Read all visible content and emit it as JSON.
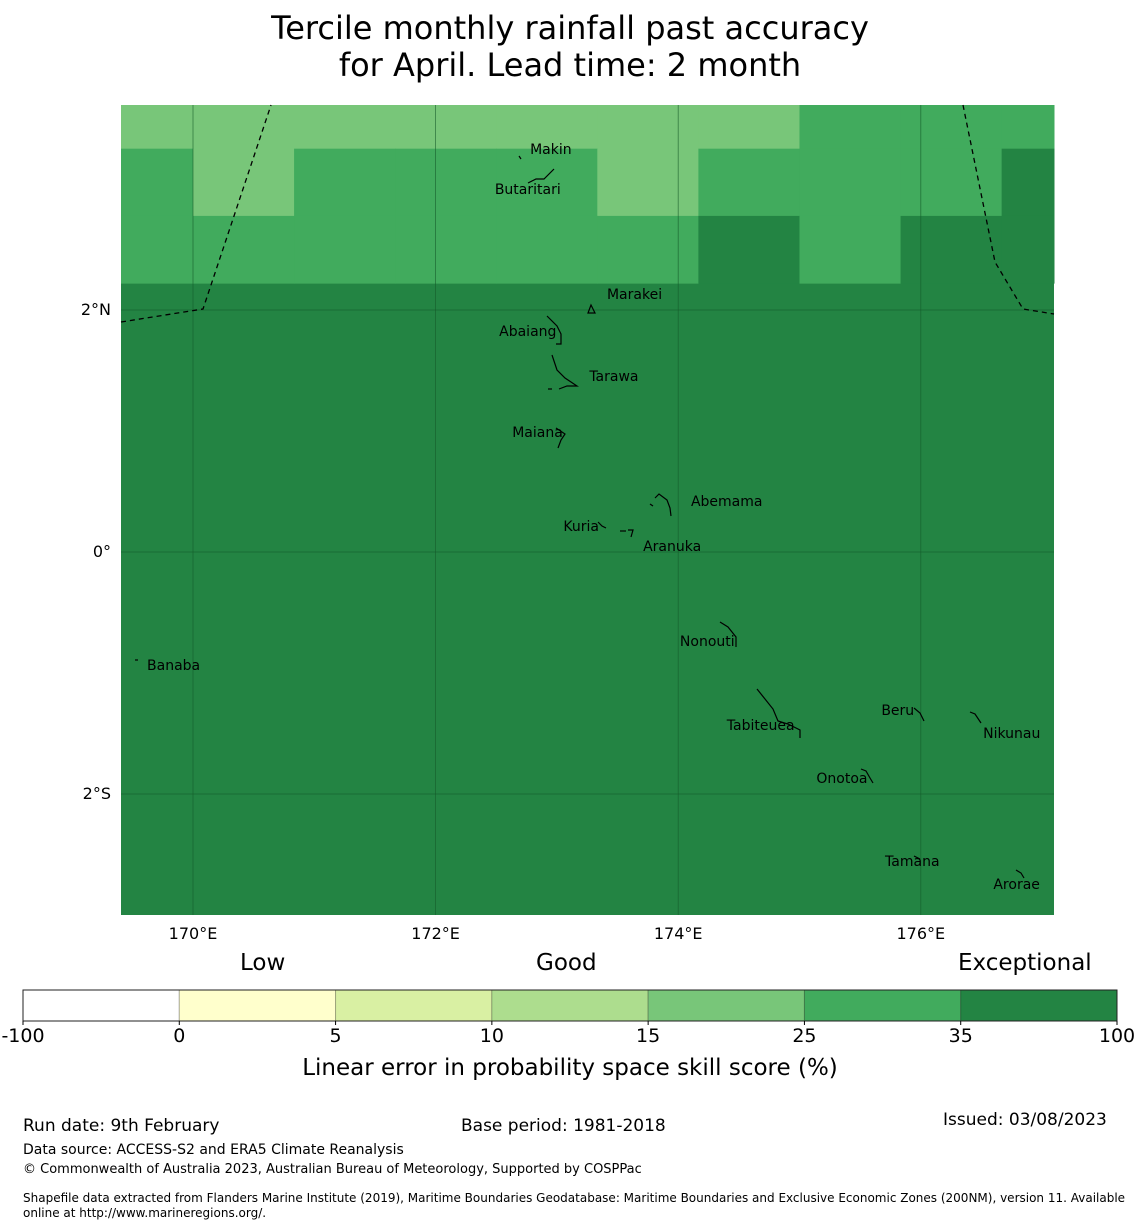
{
  "title_line1": "Tercile monthly rainfall past accuracy",
  "title_line2": "for April. Lead time: 2 month",
  "map": {
    "lon_range": [
      169.41,
      177.1
    ],
    "lat_range": [
      -3.0,
      3.69
    ],
    "grid": {
      "lon_start": 169.1667,
      "lat_start": 3.8889,
      "cell_lon": 0.8333,
      "cell_lat": 0.5556,
      "default_category": 6,
      "rows": [
        [
          4,
          4,
          4,
          4,
          4,
          4,
          4,
          5,
          5,
          5
        ],
        [
          5,
          4,
          5,
          5,
          5,
          4,
          5,
          5,
          5,
          6
        ],
        [
          5,
          5,
          5,
          5,
          5,
          5,
          6,
          5,
          6,
          6
        ]
      ]
    },
    "lon_ticks": [
      {
        "value": 170,
        "label": "170°E"
      },
      {
        "value": 172,
        "label": "172°E"
      },
      {
        "value": 174,
        "label": "174°E"
      },
      {
        "value": 176,
        "label": "176°E"
      }
    ],
    "lat_ticks": [
      {
        "value": 2,
        "label": "2°N"
      },
      {
        "value": 0,
        "label": "0°"
      },
      {
        "value": -2,
        "label": "2°S"
      }
    ],
    "islands": [
      {
        "name": "Makin",
        "lon": 172.95,
        "lat": 3.32
      },
      {
        "name": "Butaritari",
        "lon": 172.76,
        "lat": 2.99
      },
      {
        "name": "Marakei",
        "lon": 173.64,
        "lat": 2.12
      },
      {
        "name": "Abaiang",
        "lon": 172.76,
        "lat": 1.82
      },
      {
        "name": "Tarawa",
        "lon": 173.47,
        "lat": 1.45
      },
      {
        "name": "Maiana",
        "lon": 172.84,
        "lat": 0.98
      },
      {
        "name": "Abemama",
        "lon": 174.4,
        "lat": 0.41
      },
      {
        "name": "Kuria",
        "lon": 173.2,
        "lat": 0.21
      },
      {
        "name": "Aranuka",
        "lon": 173.95,
        "lat": 0.04
      },
      {
        "name": "Nonouti",
        "lon": 174.24,
        "lat": -0.74
      },
      {
        "name": "Banaba",
        "lon": 169.84,
        "lat": -0.94
      },
      {
        "name": "Tabiteuea",
        "lon": 174.68,
        "lat": -1.44
      },
      {
        "name": "Beru",
        "lon": 175.81,
        "lat": -1.31
      },
      {
        "name": "Nikunau",
        "lon": 176.75,
        "lat": -1.5
      },
      {
        "name": "Onotoa",
        "lon": 175.35,
        "lat": -1.88
      },
      {
        "name": "Tamana",
        "lon": 175.93,
        "lat": -2.56
      },
      {
        "name": "Arorae",
        "lon": 176.79,
        "lat": -2.75
      }
    ]
  },
  "colorbar": {
    "category_labels": {
      "low": "Low",
      "good": "Good",
      "exceptional": "Exceptional"
    },
    "colors": [
      "#ffffff",
      "#ffffcc",
      "#d9f0a3",
      "#addd8e",
      "#78c679",
      "#41ab5d",
      "#238443"
    ],
    "ticks": [
      "-100",
      "0",
      "5",
      "10",
      "15",
      "25",
      "35",
      "100"
    ],
    "label": "Linear error in probability space skill score (%)"
  },
  "footer": {
    "run_date": "Run date: 9th February",
    "base_period": "Base period: 1981-2018",
    "issued": "Issued: 03/08/2023",
    "data_source": "Data source: ACCESS-S2 and ERA5 Climate Reanalysis",
    "copyright": "© Commonwealth of Australia 2023, Australian Bureau of Meteorology, Supported by COSPPac",
    "shapefile": "Shapefile data extracted from Flanders Marine Institute (2019), Maritime Boundaries Geodatabase: Maritime Boundaries and Exclusive Economic Zones (200NM), version 11. Available online at http://www.marineregions.org/."
  }
}
